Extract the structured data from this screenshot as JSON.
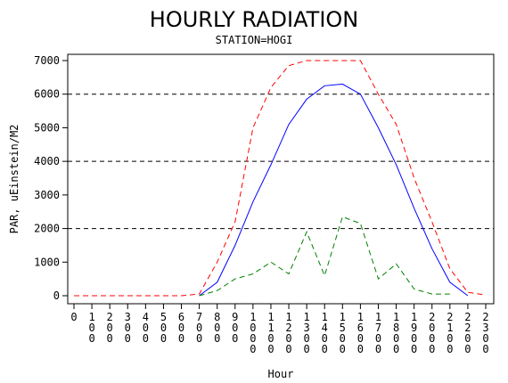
{
  "chart_data": {
    "type": "line",
    "title": "HOURLY RADIATION",
    "subtitle": "STATION=HOGI",
    "xlabel": "Hour",
    "ylabel": "PAR, uEinstein/M2",
    "x": [
      0,
      100,
      200,
      300,
      400,
      500,
      600,
      700,
      800,
      900,
      1000,
      1100,
      1200,
      1300,
      1400,
      1500,
      1600,
      1700,
      1800,
      1900,
      2000,
      2100,
      2200,
      2300
    ],
    "xtick_labels": [
      "0",
      "100",
      "200",
      "300",
      "400",
      "500",
      "600",
      "700",
      "800",
      "900",
      "1000",
      "1100",
      "1200",
      "1300",
      "1400",
      "1500",
      "1600",
      "1700",
      "1800",
      "1900",
      "2000",
      "2100",
      "2200",
      "2300"
    ],
    "yticks": [
      0,
      1000,
      2000,
      3000,
      4000,
      5000,
      6000,
      7000
    ],
    "ylim": [
      0,
      7000
    ],
    "reference_lines": [
      2000,
      4000,
      6000
    ],
    "grid": false,
    "series": [
      {
        "style": "dashed",
        "color": "#ff0000",
        "x": [
          0,
          100,
          200,
          300,
          400,
          500,
          600,
          700,
          800,
          900,
          1000,
          1100,
          1200,
          1300,
          1400,
          1500,
          1600,
          1700,
          1800,
          1900,
          2000,
          2100,
          2200,
          2300
        ],
        "values": [
          0,
          0,
          0,
          0,
          0,
          0,
          0,
          50,
          1000,
          2200,
          5000,
          6200,
          6850,
          7000,
          7000,
          7000,
          7000,
          6000,
          5100,
          3500,
          2200,
          800,
          100,
          20
        ]
      },
      {
        "style": "solid",
        "color": "#0000ff",
        "x": [
          700,
          800,
          900,
          1000,
          1100,
          1200,
          1300,
          1400,
          1500,
          1600,
          1700,
          1800,
          1900,
          2000,
          2100,
          2200
        ],
        "values": [
          0,
          400,
          1500,
          2800,
          3900,
          5100,
          5850,
          6250,
          6300,
          6000,
          5000,
          3900,
          2600,
          1400,
          400,
          0
        ]
      },
      {
        "style": "dashed",
        "color": "#008000",
        "x": [
          700,
          800,
          900,
          1000,
          1100,
          1200,
          1300,
          1400,
          1500,
          1600,
          1700,
          1800,
          1900,
          2000,
          2100
        ],
        "values": [
          0,
          150,
          500,
          650,
          1000,
          650,
          1900,
          600,
          2350,
          2150,
          500,
          950,
          200,
          50,
          50
        ]
      }
    ]
  }
}
